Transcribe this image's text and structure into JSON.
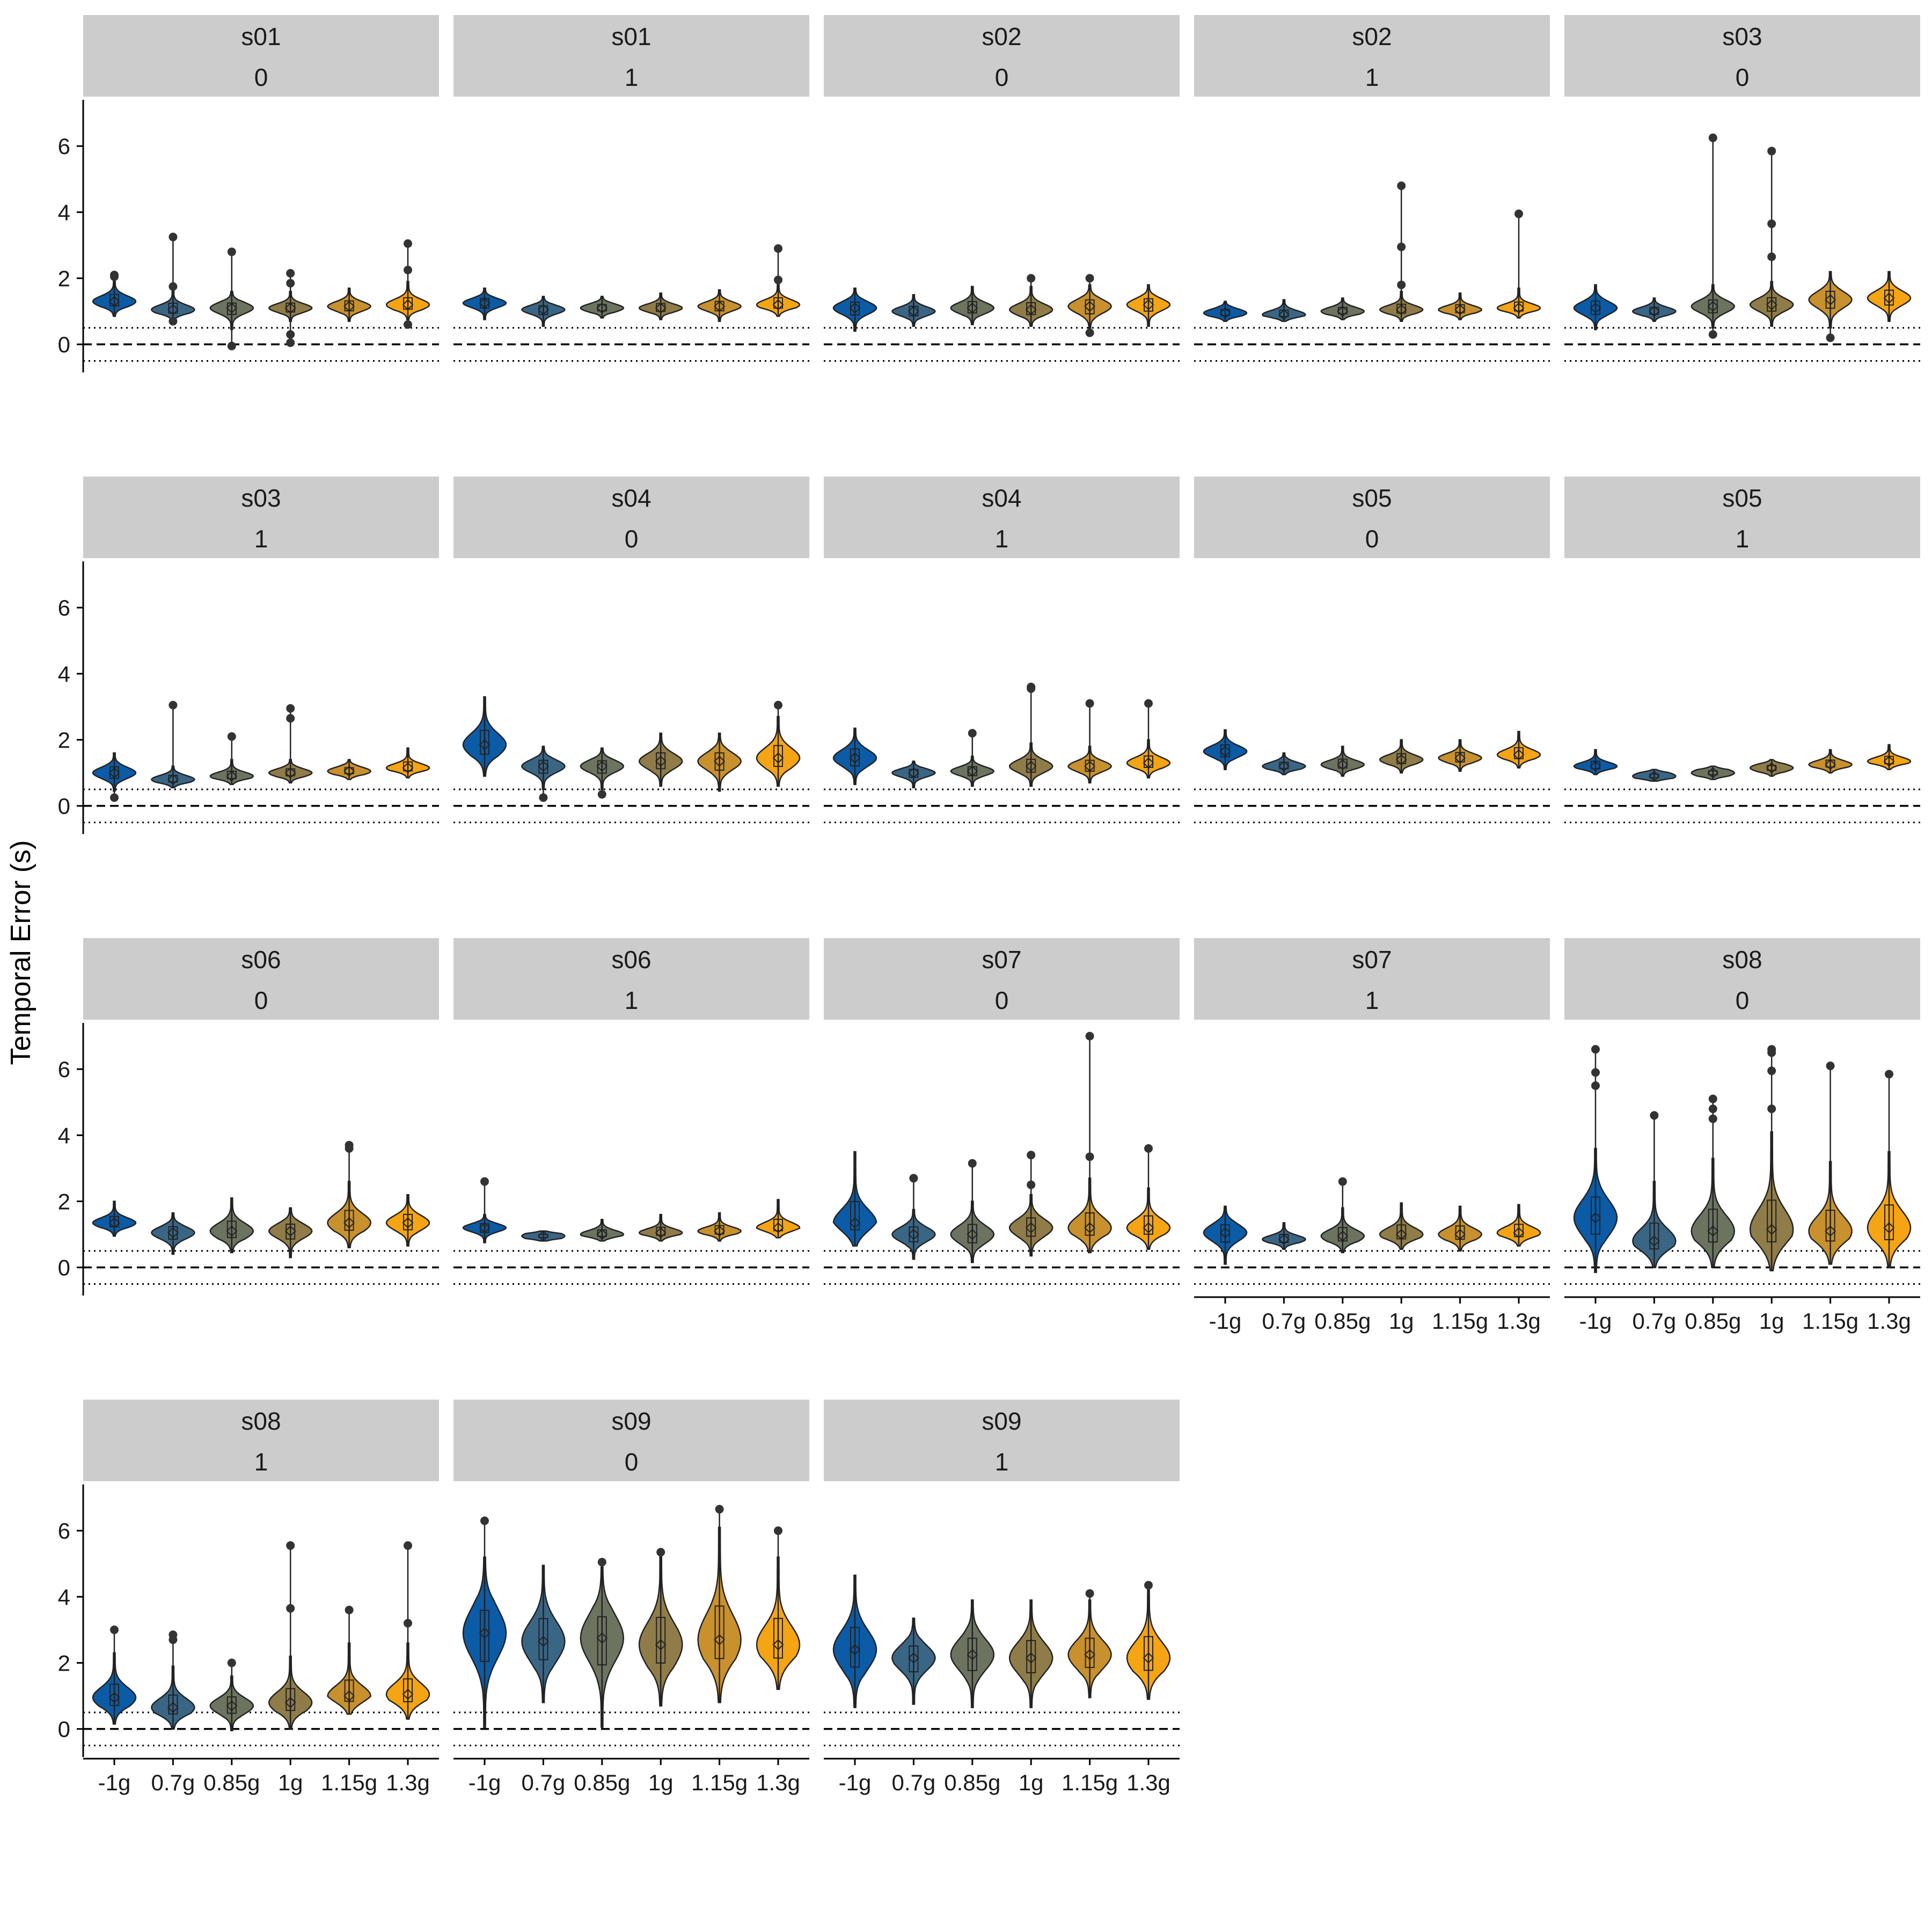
{
  "chart_data": {
    "type": "violin",
    "ylabel": "Temporal Error (s)",
    "xlabel": "",
    "ylim": [
      -0.85,
      7.4
    ],
    "yticks": [
      0,
      2,
      4,
      6
    ],
    "reference_lines": [
      {
        "y": 0,
        "style": "dashed"
      },
      {
        "y": 0.5,
        "style": "dotted"
      },
      {
        "y": -0.5,
        "style": "dotted"
      }
    ],
    "categories": [
      "-1g",
      "0.7g",
      "0.85g",
      "1g",
      "1.15g",
      "1.3g"
    ],
    "colors": {
      "-1g": "#0b5ba6",
      "0.7g": "#3a6686",
      "0.85g": "#6c7460",
      "1g": "#8f7c48",
      "1.15g": "#c8912e",
      "1.3g": "#f5a413"
    },
    "panels": [
      {
        "subject": "s01",
        "condition": "0",
        "median": [
          1.3,
          1.05,
          1.1,
          1.1,
          1.15,
          1.2
        ],
        "low": [
          0.85,
          0.7,
          0.45,
          0.7,
          0.7,
          0.75
        ],
        "high": [
          2.0,
          1.7,
          1.6,
          1.6,
          1.7,
          1.9
        ],
        "outliers": [
          [
            2.1,
            2.05
          ],
          [
            3.25,
            1.75,
            0.7
          ],
          [
            2.8,
            -0.05
          ],
          [
            2.15,
            1.85,
            0.3,
            0.05
          ],
          [],
          [
            3.05,
            2.25,
            0.6
          ]
        ]
      },
      {
        "subject": "s01",
        "condition": "1",
        "median": [
          1.25,
          1.05,
          1.1,
          1.1,
          1.15,
          1.2
        ],
        "low": [
          0.75,
          0.55,
          0.8,
          0.75,
          0.7,
          0.85
        ],
        "high": [
          1.7,
          1.45,
          1.45,
          1.55,
          1.65,
          1.9
        ],
        "outliers": [
          [],
          [],
          [],
          [],
          [],
          [
            2.9,
            1.95
          ]
        ]
      },
      {
        "subject": "s02",
        "condition": "0",
        "median": [
          1.1,
          1.0,
          1.1,
          1.05,
          1.15,
          1.2
        ],
        "low": [
          0.4,
          0.55,
          0.6,
          0.55,
          0.4,
          0.55
        ],
        "high": [
          1.7,
          1.5,
          1.75,
          1.75,
          1.8,
          1.8
        ],
        "outliers": [
          [],
          [],
          [],
          [
            2.0
          ],
          [
            2.0,
            0.35
          ],
          []
        ]
      },
      {
        "subject": "s02",
        "condition": "1",
        "median": [
          0.95,
          0.9,
          1.0,
          1.05,
          1.05,
          1.1
        ],
        "low": [
          0.7,
          0.7,
          0.75,
          0.7,
          0.75,
          0.8
        ],
        "high": [
          1.3,
          1.35,
          1.4,
          1.6,
          1.55,
          1.7
        ],
        "outliers": [
          [],
          [],
          [],
          [
            4.8,
            2.95,
            1.8
          ],
          [],
          [
            3.95
          ]
        ]
      },
      {
        "subject": "s03",
        "condition": "0",
        "median": [
          1.1,
          1.0,
          1.15,
          1.2,
          1.35,
          1.4
        ],
        "low": [
          0.45,
          0.7,
          0.5,
          0.55,
          0.5,
          0.7
        ],
        "high": [
          1.8,
          1.4,
          1.8,
          1.9,
          2.2,
          2.2
        ],
        "outliers": [
          [],
          [],
          [
            6.25,
            0.3
          ],
          [
            5.85,
            3.65,
            2.65
          ],
          [
            0.2
          ],
          []
        ]
      },
      {
        "subject": "s03",
        "condition": "1",
        "median": [
          1.0,
          0.8,
          0.9,
          1.0,
          1.05,
          1.15
        ],
        "low": [
          0.45,
          0.55,
          0.65,
          0.7,
          0.8,
          0.85
        ],
        "high": [
          1.6,
          1.2,
          1.4,
          1.4,
          1.4,
          1.75
        ],
        "outliers": [
          [
            0.25
          ],
          [
            3.05
          ],
          [
            2.1
          ],
          [
            2.95,
            2.65
          ],
          [],
          []
        ]
      },
      {
        "subject": "s04",
        "condition": "0",
        "median": [
          1.85,
          1.2,
          1.2,
          1.35,
          1.35,
          1.45
        ],
        "low": [
          0.9,
          0.5,
          0.5,
          0.6,
          0.45,
          0.6
        ],
        "high": [
          3.3,
          1.8,
          1.75,
          2.2,
          2.2,
          2.7
        ],
        "outliers": [
          [],
          [
            0.25
          ],
          [
            0.35
          ],
          [],
          [],
          [
            3.05
          ]
        ]
      },
      {
        "subject": "s04",
        "condition": "1",
        "median": [
          1.45,
          1.0,
          1.05,
          1.2,
          1.2,
          1.3
        ],
        "low": [
          0.65,
          0.55,
          0.6,
          0.6,
          0.7,
          0.85
        ],
        "high": [
          2.35,
          1.35,
          1.5,
          1.9,
          1.8,
          2.0
        ],
        "outliers": [
          [],
          [],
          [
            2.2
          ],
          [
            3.6,
            3.55
          ],
          [
            3.1
          ],
          [
            3.1
          ]
        ]
      },
      {
        "subject": "s05",
        "condition": "0",
        "median": [
          1.65,
          1.2,
          1.25,
          1.4,
          1.45,
          1.55
        ],
        "low": [
          1.1,
          0.95,
          0.9,
          1.0,
          1.05,
          1.15
        ],
        "high": [
          2.3,
          1.6,
          1.8,
          2.0,
          2.0,
          2.25
        ],
        "outliers": [
          [],
          [],
          [],
          [],
          [],
          []
        ]
      },
      {
        "subject": "s05",
        "condition": "1",
        "median": [
          1.2,
          0.9,
          1.0,
          1.15,
          1.25,
          1.35
        ],
        "low": [
          0.95,
          0.75,
          0.8,
          0.9,
          1.0,
          1.1
        ],
        "high": [
          1.7,
          1.1,
          1.2,
          1.4,
          1.7,
          1.85
        ],
        "outliers": [
          [],
          [],
          [],
          [],
          [],
          []
        ]
      },
      {
        "subject": "s06",
        "condition": "0",
        "median": [
          1.35,
          1.05,
          1.1,
          1.1,
          1.35,
          1.35
        ],
        "low": [
          0.95,
          0.4,
          0.45,
          0.3,
          0.6,
          0.65
        ],
        "high": [
          2.0,
          1.65,
          2.1,
          1.8,
          2.6,
          2.2
        ],
        "outliers": [
          [],
          [],
          [],
          [],
          [
            3.7,
            3.6
          ],
          []
        ]
      },
      {
        "subject": "s06",
        "condition": "1",
        "median": [
          1.2,
          0.95,
          1.0,
          1.05,
          1.1,
          1.2
        ],
        "low": [
          0.75,
          0.8,
          0.8,
          0.8,
          0.8,
          0.9
        ],
        "high": [
          1.6,
          1.1,
          1.45,
          1.6,
          1.65,
          2.05
        ],
        "outliers": [
          [
            2.6
          ],
          [],
          [],
          [],
          [],
          []
        ]
      },
      {
        "subject": "s07",
        "condition": "0",
        "median": [
          1.35,
          1.0,
          1.0,
          1.2,
          1.2,
          1.2
        ],
        "low": [
          0.65,
          0.25,
          0.15,
          0.35,
          0.45,
          0.55
        ],
        "high": [
          3.5,
          1.75,
          2.0,
          2.2,
          2.7,
          2.4
        ],
        "outliers": [
          [],
          [
            2.7
          ],
          [
            3.15
          ],
          [
            3.4,
            2.5
          ],
          [
            7.0,
            3.35
          ],
          [
            3.6
          ]
        ]
      },
      {
        "subject": "s07",
        "condition": "1",
        "median": [
          1.05,
          0.85,
          0.95,
          1.0,
          1.0,
          1.05
        ],
        "low": [
          0.1,
          0.55,
          0.45,
          0.55,
          0.5,
          0.65
        ],
        "high": [
          1.85,
          1.35,
          1.8,
          1.95,
          1.85,
          1.9
        ],
        "outliers": [
          [],
          [],
          [
            2.6
          ],
          [],
          [],
          []
        ]
      },
      {
        "subject": "s08",
        "condition": "0",
        "median": [
          1.5,
          0.8,
          1.1,
          1.15,
          1.1,
          1.2
        ],
        "low": [
          -0.15,
          0.0,
          0.0,
          -0.1,
          0.1,
          0.0
        ],
        "high": [
          3.6,
          2.6,
          3.3,
          4.1,
          3.2,
          3.5
        ],
        "outliers": [
          [
            6.6,
            5.9,
            5.5
          ],
          [
            4.6
          ],
          [
            5.1,
            4.8,
            4.5
          ],
          [
            6.6,
            6.5,
            5.95,
            4.8
          ],
          [
            6.1
          ],
          [
            5.85
          ]
        ]
      },
      {
        "subject": "s08",
        "condition": "1",
        "median": [
          0.95,
          0.65,
          0.7,
          0.8,
          1.0,
          1.05
        ],
        "low": [
          0.15,
          0.0,
          -0.05,
          0.0,
          0.45,
          0.3
        ],
        "high": [
          2.3,
          1.9,
          1.6,
          2.2,
          2.6,
          2.6
        ],
        "outliers": [
          [
            3.0
          ],
          [
            2.85,
            2.7
          ],
          [
            2.0
          ],
          [
            5.55,
            3.65
          ],
          [
            3.6
          ],
          [
            5.55,
            3.2
          ]
        ]
      },
      {
        "subject": "s09",
        "condition": "0",
        "median": [
          2.9,
          2.65,
          2.75,
          2.55,
          2.7,
          2.55
        ],
        "low": [
          0.05,
          0.8,
          0.05,
          0.7,
          0.8,
          1.2
        ],
        "high": [
          5.2,
          4.95,
          4.9,
          5.3,
          6.1,
          5.2
        ],
        "outliers": [
          [
            6.3
          ],
          [],
          [
            5.05
          ],
          [
            5.35
          ],
          [
            6.65
          ],
          [
            6.0
          ]
        ]
      },
      {
        "subject": "s09",
        "condition": "1",
        "median": [
          2.4,
          2.15,
          2.25,
          2.15,
          2.25,
          2.15
        ],
        "low": [
          0.65,
          0.75,
          0.65,
          0.65,
          0.95,
          0.9
        ],
        "high": [
          4.65,
          3.35,
          3.9,
          3.9,
          3.9,
          4.3
        ],
        "outliers": [
          [],
          [],
          [],
          [],
          [
            4.1
          ],
          [
            4.35
          ]
        ]
      }
    ]
  }
}
